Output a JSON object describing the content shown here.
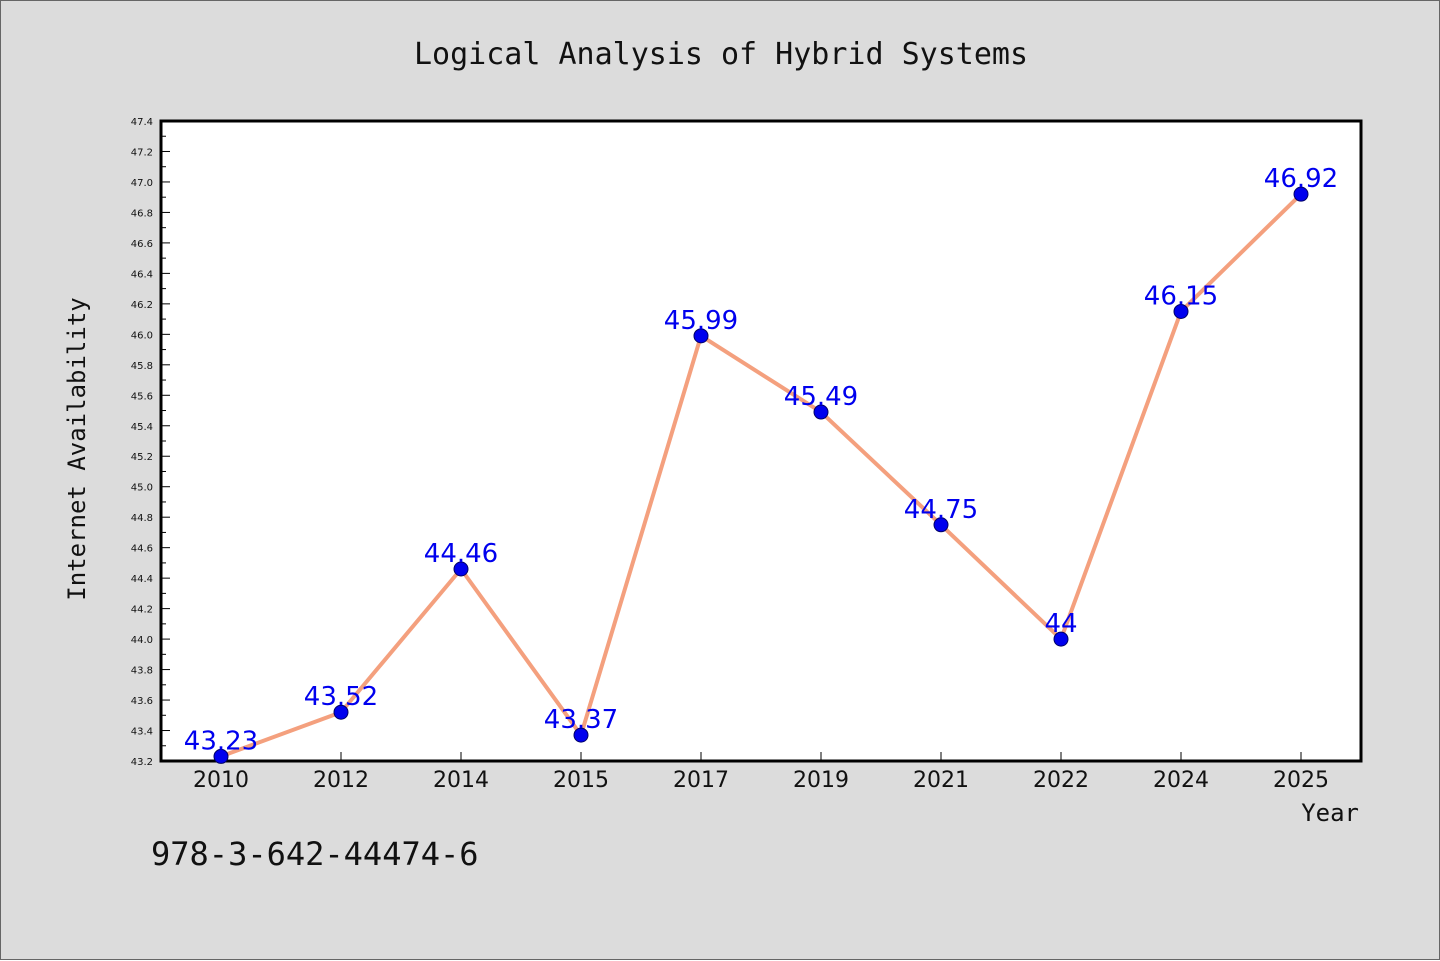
{
  "colors": {
    "background": "#dcdcdc",
    "plot_area": "#ffffff",
    "line": "#f4a07e",
    "marker": "#0000ee",
    "data_label": "#0000ee",
    "axis": "#000000"
  },
  "footer": {
    "isbn": "978-3-642-44474-6"
  },
  "chart_data": {
    "type": "line",
    "title": "Logical Analysis of Hybrid Systems",
    "xlabel": "Year",
    "ylabel": "Internet Availability",
    "categories": [
      "2010",
      "2012",
      "2014",
      "2015",
      "2017",
      "2019",
      "2021",
      "2022",
      "2024",
      "2025"
    ],
    "series": [
      {
        "values": [
          43.23,
          43.52,
          44.46,
          43.37,
          45.99,
          45.49,
          44.75,
          44,
          46.15,
          46.92
        ],
        "data_labels": [
          "43.23",
          "43.52",
          "44.46",
          "43.37",
          "45.99",
          "45.49",
          "44.75",
          "44",
          "46.15",
          "46.92"
        ]
      }
    ],
    "ylim": [
      43.2,
      47.4
    ],
    "yticks": [
      "43.2",
      "43.4",
      "43.6",
      "43.8",
      "44.0",
      "44.2",
      "44.4",
      "44.6",
      "44.8",
      "45.0",
      "45.2",
      "45.4",
      "45.6",
      "45.8",
      "46.0",
      "46.2",
      "46.4",
      "46.6",
      "46.8",
      "47.0",
      "47.2",
      "47.4"
    ],
    "grid": false,
    "legend": "none"
  }
}
